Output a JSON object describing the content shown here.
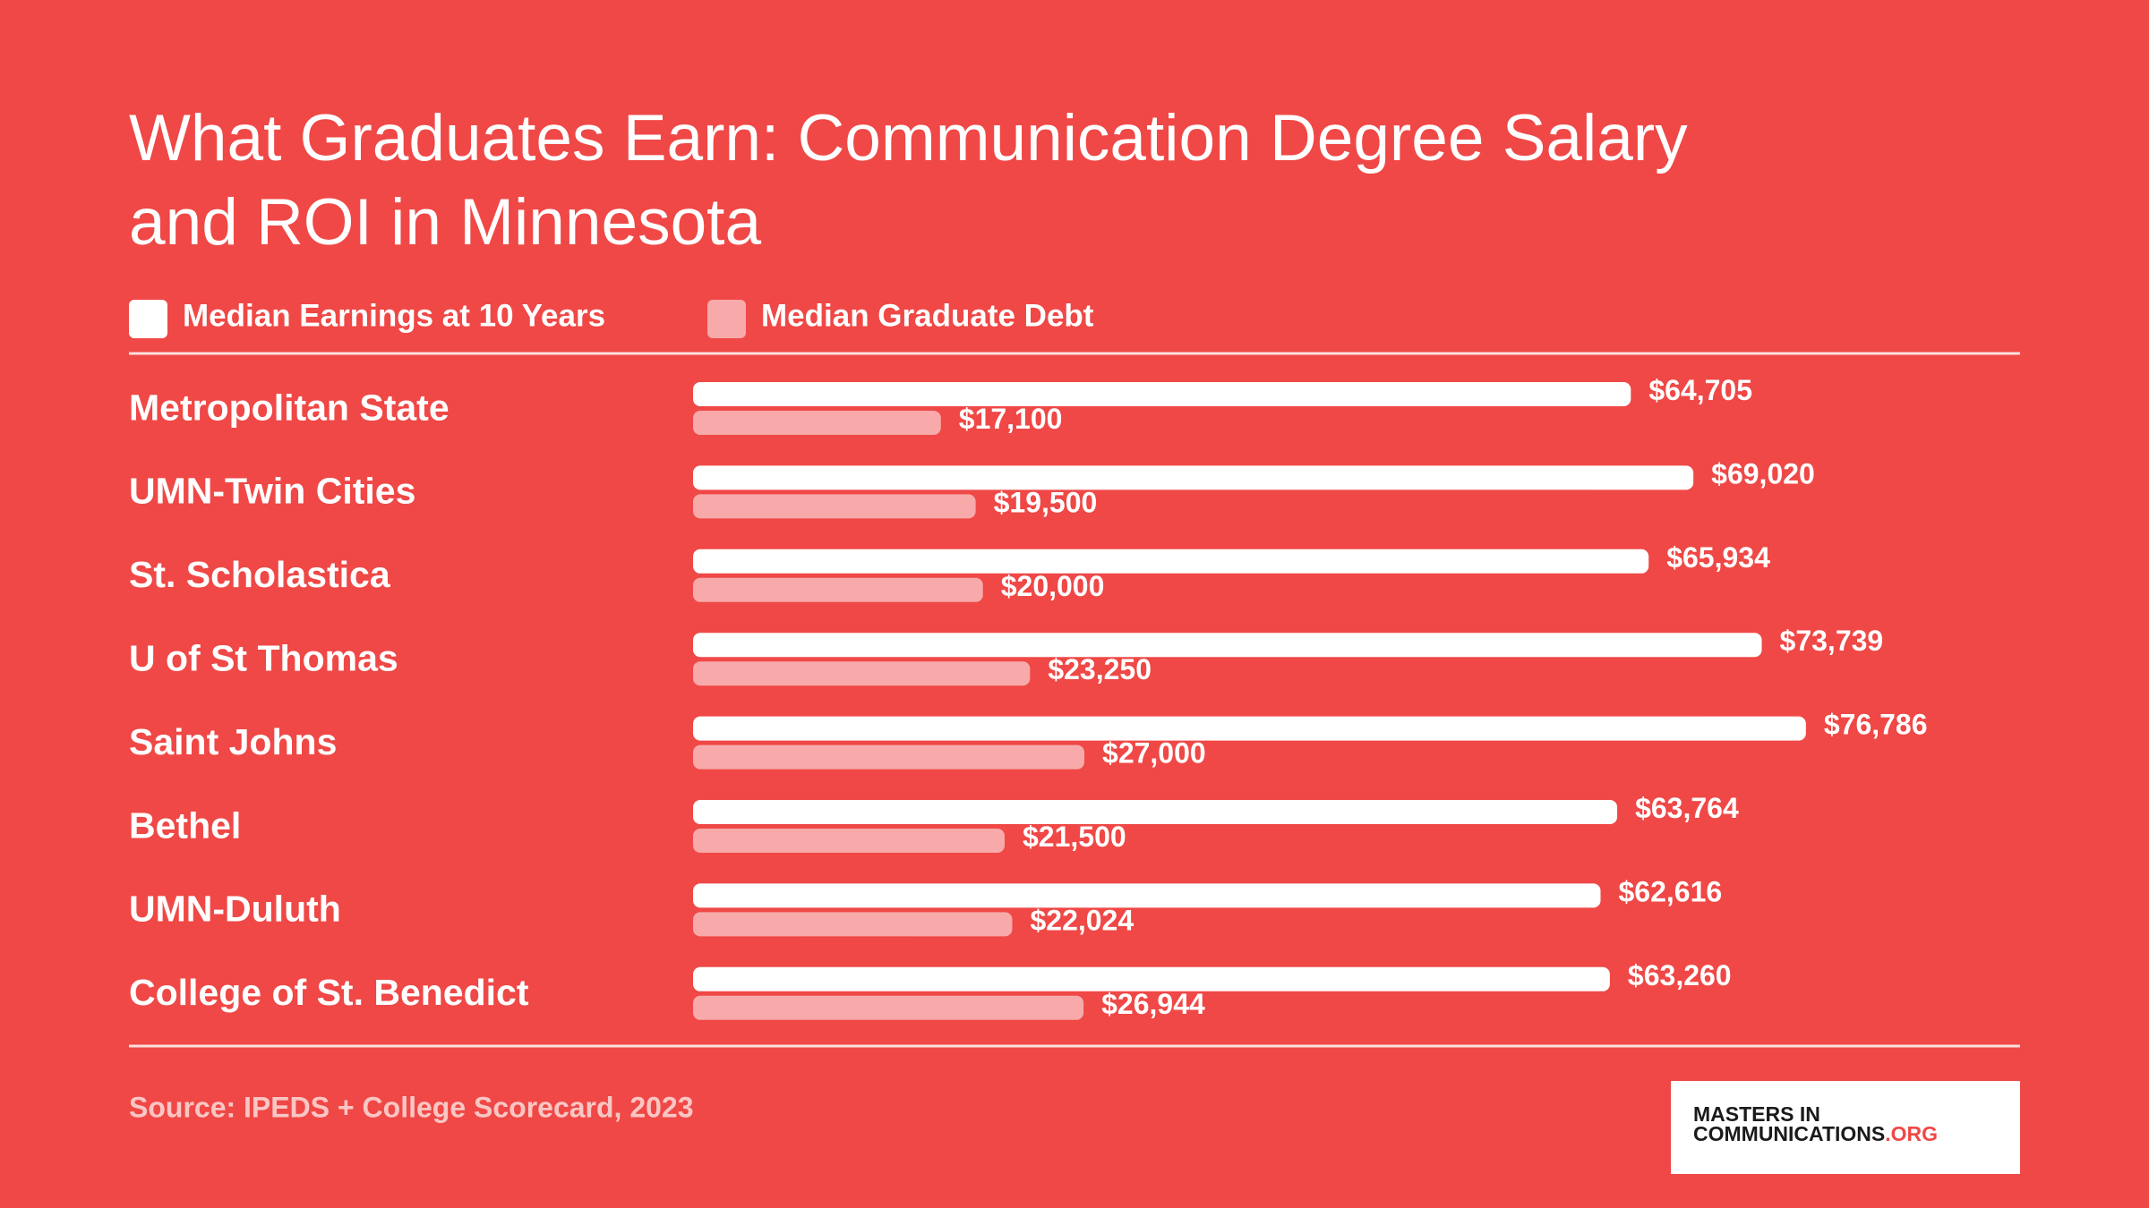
{
  "chart_data": {
    "type": "bar",
    "orientation": "horizontal",
    "title": "What Graduates Earn: Communication Degree Salary and ROI in Minnesota",
    "categories": [
      "Metropolitan State",
      "UMN-Twin Cities",
      "St. Scholastica",
      "U of St Thomas",
      "Saint Johns",
      "Bethel",
      "UMN-Duluth",
      "College of St. Benedict"
    ],
    "series": [
      {
        "name": "Median Earnings at 10 Years",
        "color": "#ffffff",
        "values": [
          64705,
          69020,
          65934,
          73739,
          76786,
          63764,
          62616,
          63260
        ],
        "value_labels": [
          "$64,705",
          "$69,020",
          "$65,934",
          "$73,739",
          "$76,786",
          "$63,764",
          "$62,616",
          "$63,260"
        ]
      },
      {
        "name": "Median Graduate Debt",
        "color": "#f7aaa9",
        "values": [
          17100,
          19500,
          20000,
          23250,
          27000,
          21500,
          22024,
          26944
        ],
        "value_labels": [
          "$17,100",
          "$19,500",
          "$20,000",
          "$23,250",
          "$27,000",
          "$21,500",
          "$22,024",
          "$26,944"
        ]
      }
    ],
    "source": "Source: IPEDS + College Scorecard, 2023"
  },
  "branding": {
    "line1": "MASTERS IN",
    "line2": "COMMUNICATIONS",
    "suffix": ".ORG"
  }
}
